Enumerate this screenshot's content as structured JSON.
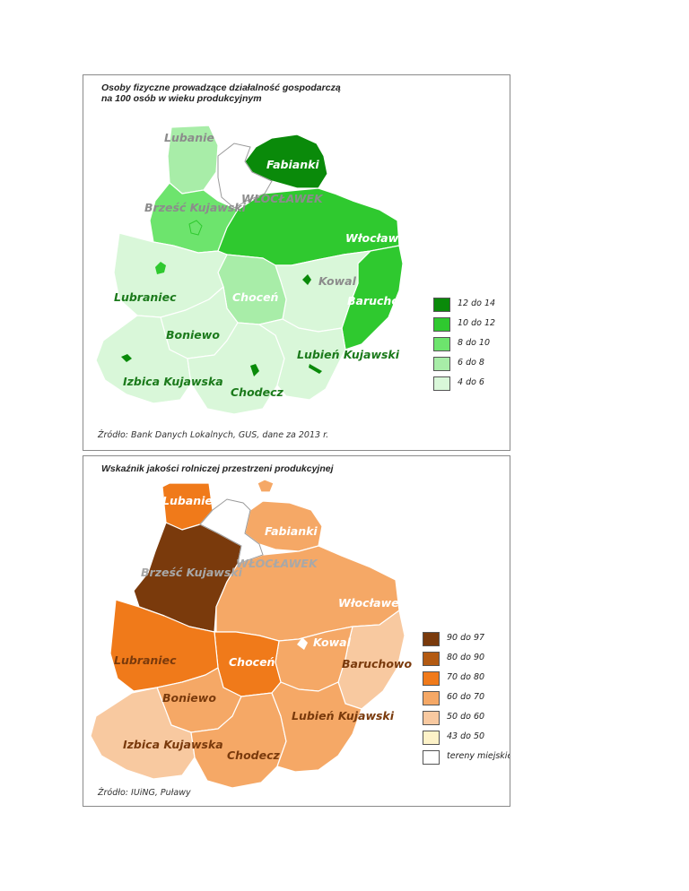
{
  "map1": {
    "title_line1": "Osoby fizyczne prowadzące działalność gospodarczą",
    "title_line2": "na 100 osób w wieku produkcyjnym",
    "source": "Źródło: Bank Danych Lokalnych, GUS, dane za 2013 r.",
    "labels": {
      "lubanie": "Lubanie",
      "fabianki": "Fabianki",
      "brzesc": "Brześć Kujawski",
      "wloclawek_city": "WŁOCŁAWEK",
      "wloclawek": "Włocławek",
      "kowal": "Kowal",
      "lubraniec": "Lubraniec",
      "chocen": "Choceń",
      "baruchowo": "Baruchowo",
      "boniewo": "Boniewo",
      "lubien": "Lubień Kujawski",
      "izbica": "Izbica Kujawska",
      "chodecz": "Chodecz"
    },
    "legend": [
      {
        "label": "12 do 14",
        "color": "#0a8a0a"
      },
      {
        "label": "10 do 12",
        "color": "#2fc92f"
      },
      {
        "label": "8 do 10",
        "color": "#6de46d"
      },
      {
        "label": "6 do 8",
        "color": "#a8eda8"
      },
      {
        "label": "4 do 6",
        "color": "#d9f7d9"
      }
    ]
  },
  "map2": {
    "title": "Wskaźnik jakości rolniczej przestrzeni produkcyjnej",
    "source": "Źródło: IUiNG, Puławy",
    "labels": {
      "lubanie": "Lubanie",
      "fabianki": "Fabianki",
      "brzesc": "Brześć Kujawski",
      "wloclawek_city": "WŁOCŁAWEK",
      "wloclawek": "Włocławek",
      "kowal": "Kowal",
      "lubraniec": "Lubraniec",
      "chocen": "Choceń",
      "baruchowo": "Baruchowo",
      "boniewo": "Boniewo",
      "lubien": "Lubień Kujawski",
      "izbica": "Izbica Kujawska",
      "chodecz": "Chodecz"
    },
    "legend": [
      {
        "label": "90 do 97",
        "color": "#7a3a0c"
      },
      {
        "label": "80 do 90",
        "color": "#b35a12"
      },
      {
        "label": "70 do 80",
        "color": "#f07a1a"
      },
      {
        "label": "60 do 70",
        "color": "#f5a866"
      },
      {
        "label": "50 do 60",
        "color": "#f8c9a0"
      },
      {
        "label": "43 do 50",
        "color": "#fdf2c8"
      },
      {
        "label": "tereny miejskie",
        "color": "#ffffff"
      }
    ]
  }
}
